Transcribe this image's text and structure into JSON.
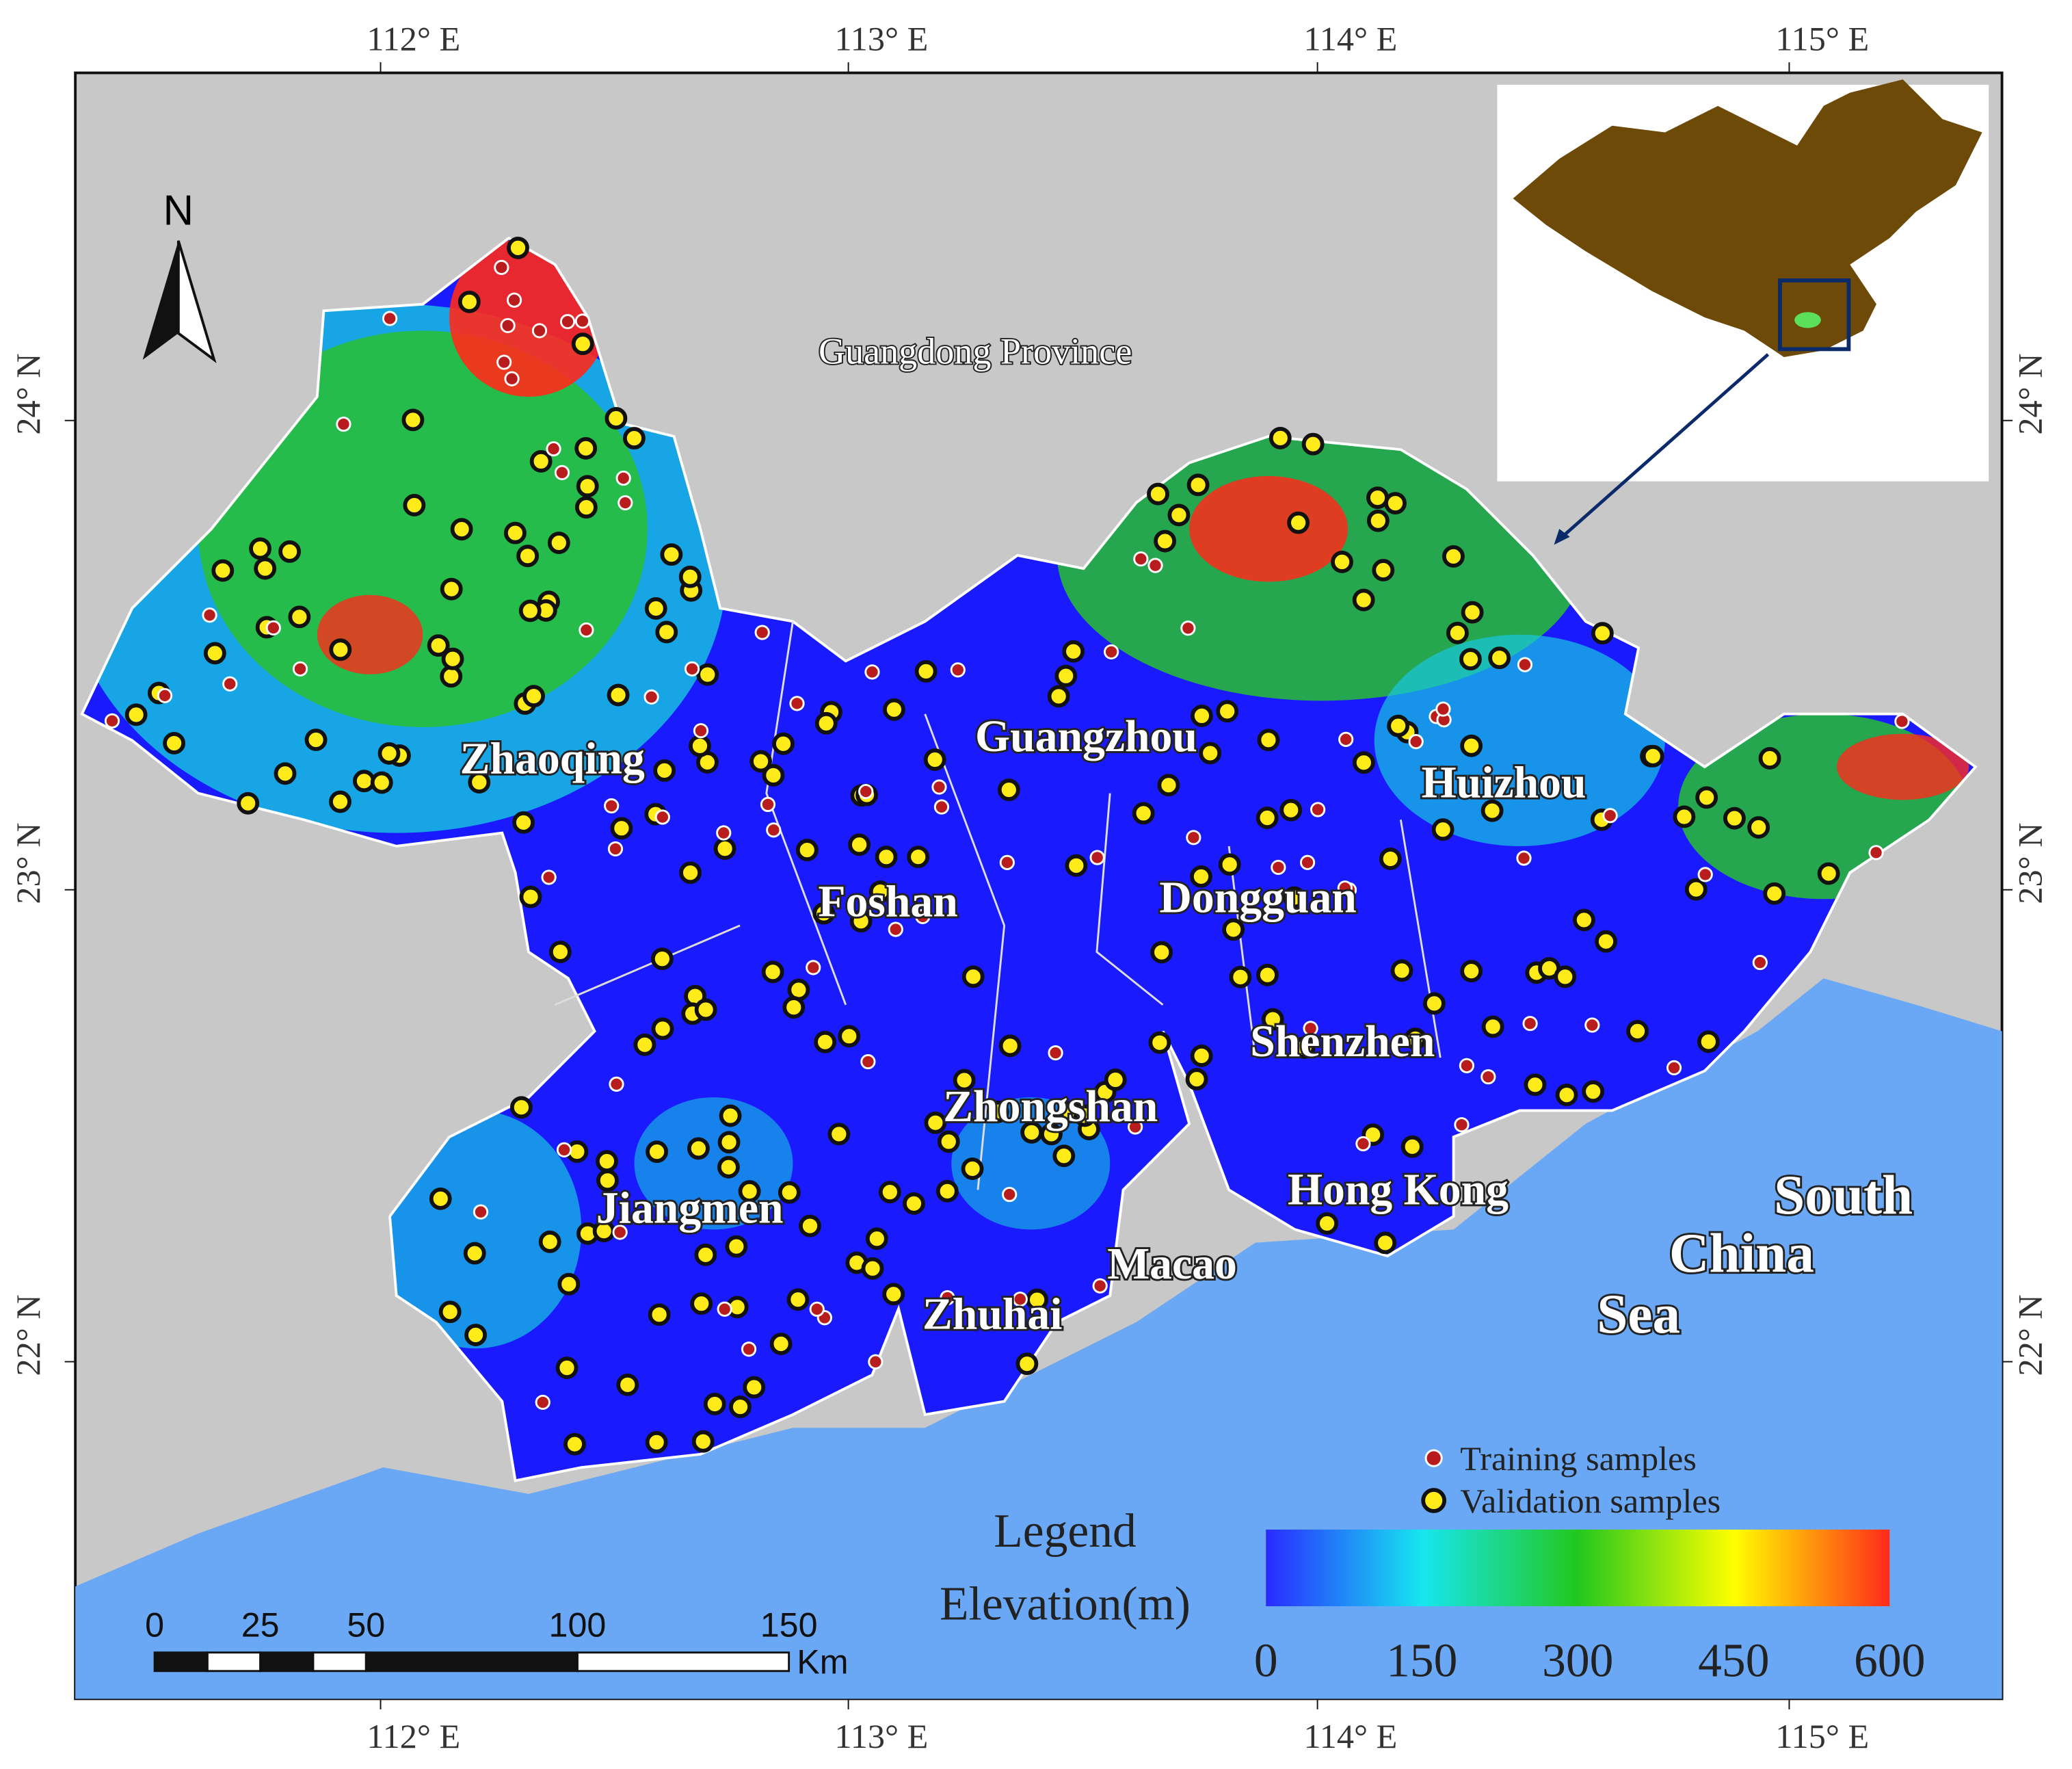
{
  "graticule": {
    "top": [
      "112° E",
      "113° E",
      "114° E",
      "115° E"
    ],
    "bottom": [
      "112° E",
      "113° E",
      "114° E",
      "115° E"
    ],
    "left": [
      "24° N",
      "23° N",
      "22° N"
    ],
    "right": [
      "24° N",
      "23° N",
      "22° N"
    ]
  },
  "north": "N",
  "labels": {
    "province": "Guangdong Province",
    "cities": [
      "Zhaoqing",
      "Guangzhou",
      "Huizhou",
      "Foshan",
      "Dongguan",
      "Shenzhen",
      "Zhongshan",
      "Jiangmen",
      "Hong Kong",
      "Macao",
      "Zhuhai"
    ],
    "sea": [
      "South",
      "China",
      "Sea"
    ]
  },
  "legend": {
    "samples": [
      "Training samples",
      "Validation samples"
    ],
    "title": "Legend",
    "colorbar_title": "Elevation(m)",
    "colorbar_ticks": [
      0,
      150,
      300,
      450,
      600
    ]
  },
  "scale_bar": {
    "ticks": [
      0,
      25,
      50,
      100,
      150
    ],
    "unit": "Km"
  }
}
